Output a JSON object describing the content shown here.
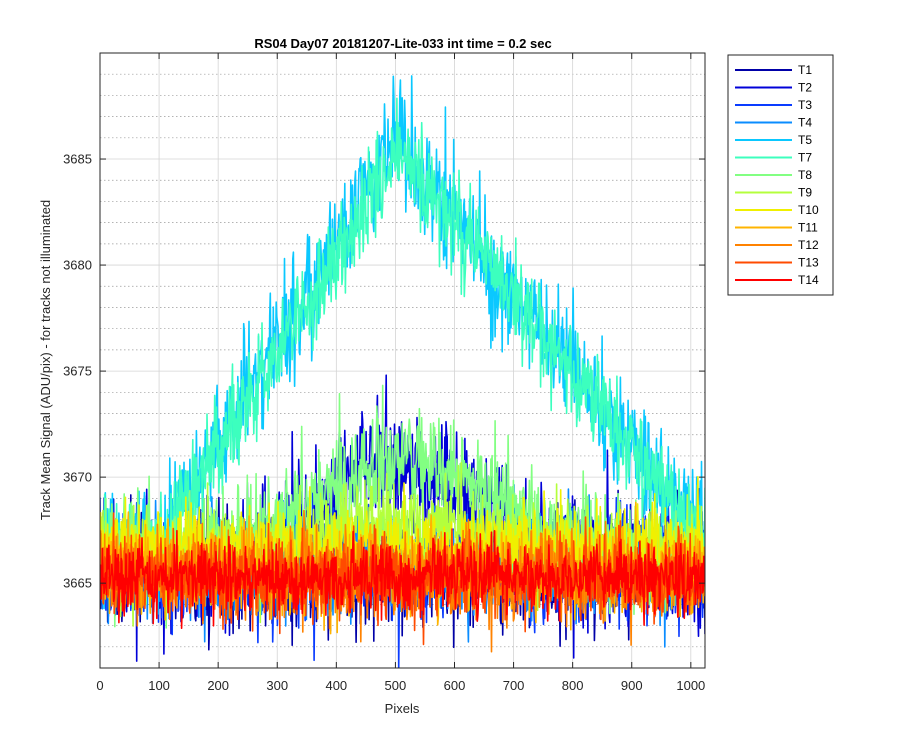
{
  "chart_data": {
    "type": "line",
    "title": "RS04 Day07 20181207-Lite-033 int time = 0.2 sec",
    "xlabel": "Pixels",
    "ylabel": "Track Mean Signal (ADU/pix) - for tracks not illuminated",
    "xlim": [
      0,
      1024
    ],
    "ylim": [
      3661,
      3690
    ],
    "x_ticks": [
      0,
      100,
      200,
      300,
      400,
      500,
      600,
      700,
      800,
      900,
      1000
    ],
    "y_ticks": [
      3665,
      3670,
      3675,
      3680,
      3685
    ],
    "grid": true,
    "minor_grid": true,
    "legend_position": "outside-top-right",
    "x_samples": 1024,
    "series": [
      {
        "name": "T1",
        "color": "#0000a8",
        "profile": "flat",
        "center": 3665.6,
        "noise": 1.3
      },
      {
        "name": "T2",
        "color": "#0000d8",
        "profile": "bump",
        "base": 3665.8,
        "peak": 3670.6,
        "peak_x": 500,
        "width": 190,
        "noise": 1.4
      },
      {
        "name": "T3",
        "color": "#0a3cff",
        "profile": "flat",
        "center": 3665.7,
        "noise": 1.2
      },
      {
        "name": "T4",
        "color": "#0a8cff",
        "profile": "flat",
        "center": 3665.9,
        "noise": 1.2
      },
      {
        "name": "T5",
        "color": "#0ac8ff",
        "profile": "tent",
        "base": 3666.8,
        "peak": 3685.8,
        "peak_x": 500,
        "start_x": 100,
        "end_x": 1024,
        "noise": 1.3
      },
      {
        "name": "T7",
        "color": "#3cffbe",
        "profile": "tent",
        "base": 3667.0,
        "peak": 3685.3,
        "peak_x": 505,
        "start_x": 110,
        "end_x": 1024,
        "noise": 1.1
      },
      {
        "name": "T8",
        "color": "#82ff82",
        "profile": "bump",
        "base": 3666.4,
        "peak": 3670.8,
        "peak_x": 520,
        "width": 210,
        "noise": 1.2
      },
      {
        "name": "T9",
        "color": "#b4ff3c",
        "profile": "bump",
        "base": 3666.3,
        "peak": 3667.9,
        "peak_x": 520,
        "width": 230,
        "noise": 1.0
      },
      {
        "name": "T10",
        "color": "#f0f000",
        "profile": "flat",
        "center": 3666.7,
        "noise": 0.9
      },
      {
        "name": "T11",
        "color": "#ffb400",
        "profile": "flat",
        "center": 3665.6,
        "noise": 1.0
      },
      {
        "name": "T12",
        "color": "#ff8200",
        "profile": "flat",
        "center": 3665.4,
        "noise": 1.0
      },
      {
        "name": "T13",
        "color": "#ff4b00",
        "profile": "flat",
        "center": 3665.3,
        "noise": 0.9
      },
      {
        "name": "T14",
        "color": "#ff0000",
        "profile": "flat",
        "center": 3665.3,
        "noise": 0.8
      }
    ]
  }
}
